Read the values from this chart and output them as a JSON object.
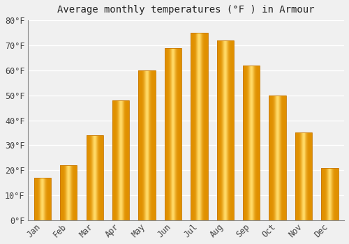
{
  "title": "Average monthly temperatures (°F ) in Armour",
  "months": [
    "Jan",
    "Feb",
    "Mar",
    "Apr",
    "May",
    "Jun",
    "Jul",
    "Aug",
    "Sep",
    "Oct",
    "Nov",
    "Dec"
  ],
  "values": [
    17,
    22,
    34,
    48,
    60,
    69,
    75,
    72,
    62,
    50,
    35,
    21
  ],
  "bar_color_main": "#FBB117",
  "bar_color_light": "#FFD966",
  "bar_color_dark": "#E09000",
  "ylim": [
    0,
    80
  ],
  "yticks": [
    0,
    10,
    20,
    30,
    40,
    50,
    60,
    70,
    80
  ],
  "ytick_labels": [
    "0°F",
    "10°F",
    "20°F",
    "30°F",
    "40°F",
    "50°F",
    "60°F",
    "70°F",
    "80°F"
  ],
  "background_color": "#f0f0f0",
  "plot_background": "#f0f0f0",
  "grid_color": "#ffffff",
  "title_fontsize": 10,
  "tick_fontsize": 8.5,
  "bar_width": 0.65
}
